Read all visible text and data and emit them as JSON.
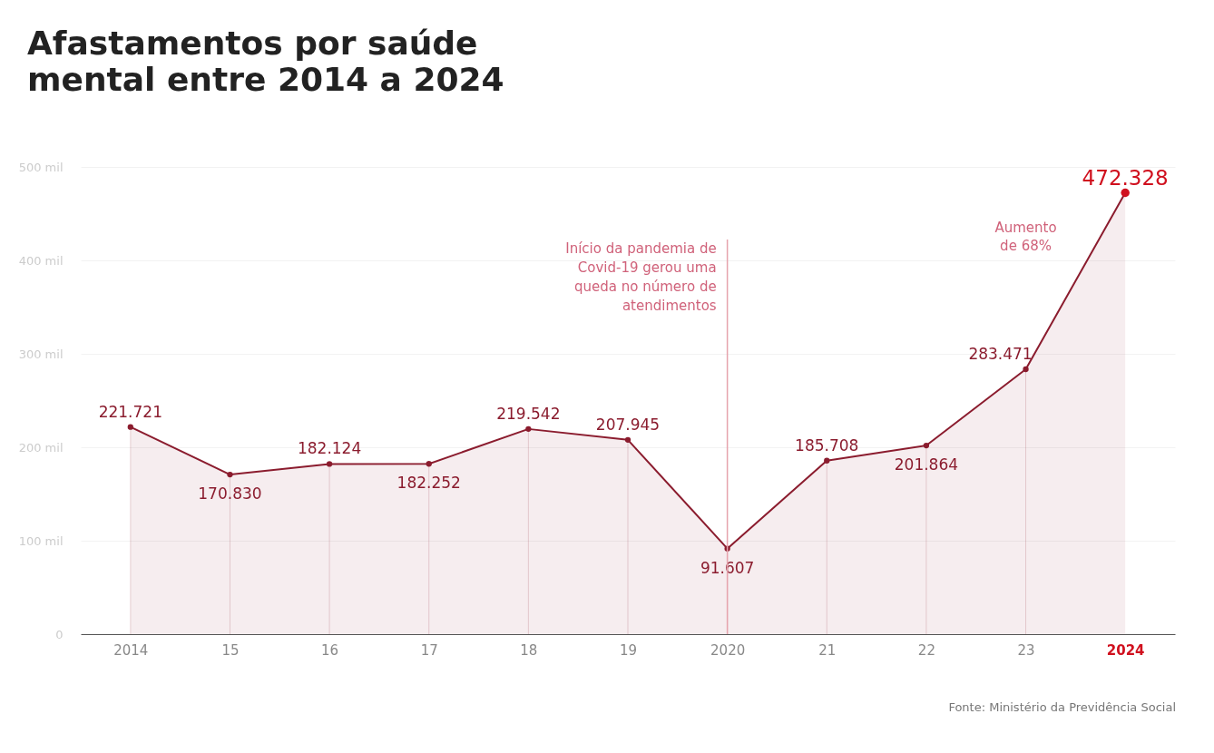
{
  "chart_data": {
    "type": "area",
    "title": "Afastamentos por saúde mental entre 2014 a 2024",
    "categories": [
      "2014",
      "15",
      "16",
      "17",
      "18",
      "19",
      "2020",
      "21",
      "22",
      "23",
      "2024"
    ],
    "series": [
      {
        "name": null,
        "color": "#8b1c2e",
        "values": [
          221.721,
          170.83,
          182.124,
          182.252,
          219.542,
          207.945,
          91.607,
          185.708,
          201.864,
          283.471,
          472.328
        ],
        "colors": [
          "#8b1c2e",
          "#8b1c2e",
          "#8b1c2e",
          "#8b1c2e",
          "#8b1c2e",
          "#8b1c2e",
          "#8b1c2e",
          "#8b1c2e",
          "#8b1c2e",
          "#8b1c2e",
          "#d0101e"
        ],
        "value_labels": [
          "221.721",
          "170.830",
          "182.124",
          "182.252",
          "219.542",
          "207.945",
          "91.607",
          "185.708",
          "201.864",
          "283.471",
          "472.328"
        ]
      }
    ],
    "ylim": [
      0,
      500
    ],
    "yticks": [
      0,
      {
        "value": 100,
        "label": "100 mil"
      },
      {
        "value": 200,
        "label": "200 mil"
      },
      {
        "value": 300,
        "label": "300 mil"
      },
      {
        "value": 400,
        "label": "400 mil"
      },
      {
        "value": 500,
        "label": "500 mil"
      }
    ],
    "grid": "y",
    "marker": "circle",
    "line_style": "solid",
    "ref_lines": [
      {
        "axis": "x",
        "value": "2020",
        "label": "Início da pandemia de Covid-19 gerou uma queda no número de atendimentos",
        "color": "#e6a3ad"
      }
    ],
    "annotations": [
      "Aumento de 68%",
      "Fonte: Ministério da Previdência Social"
    ]
  }
}
